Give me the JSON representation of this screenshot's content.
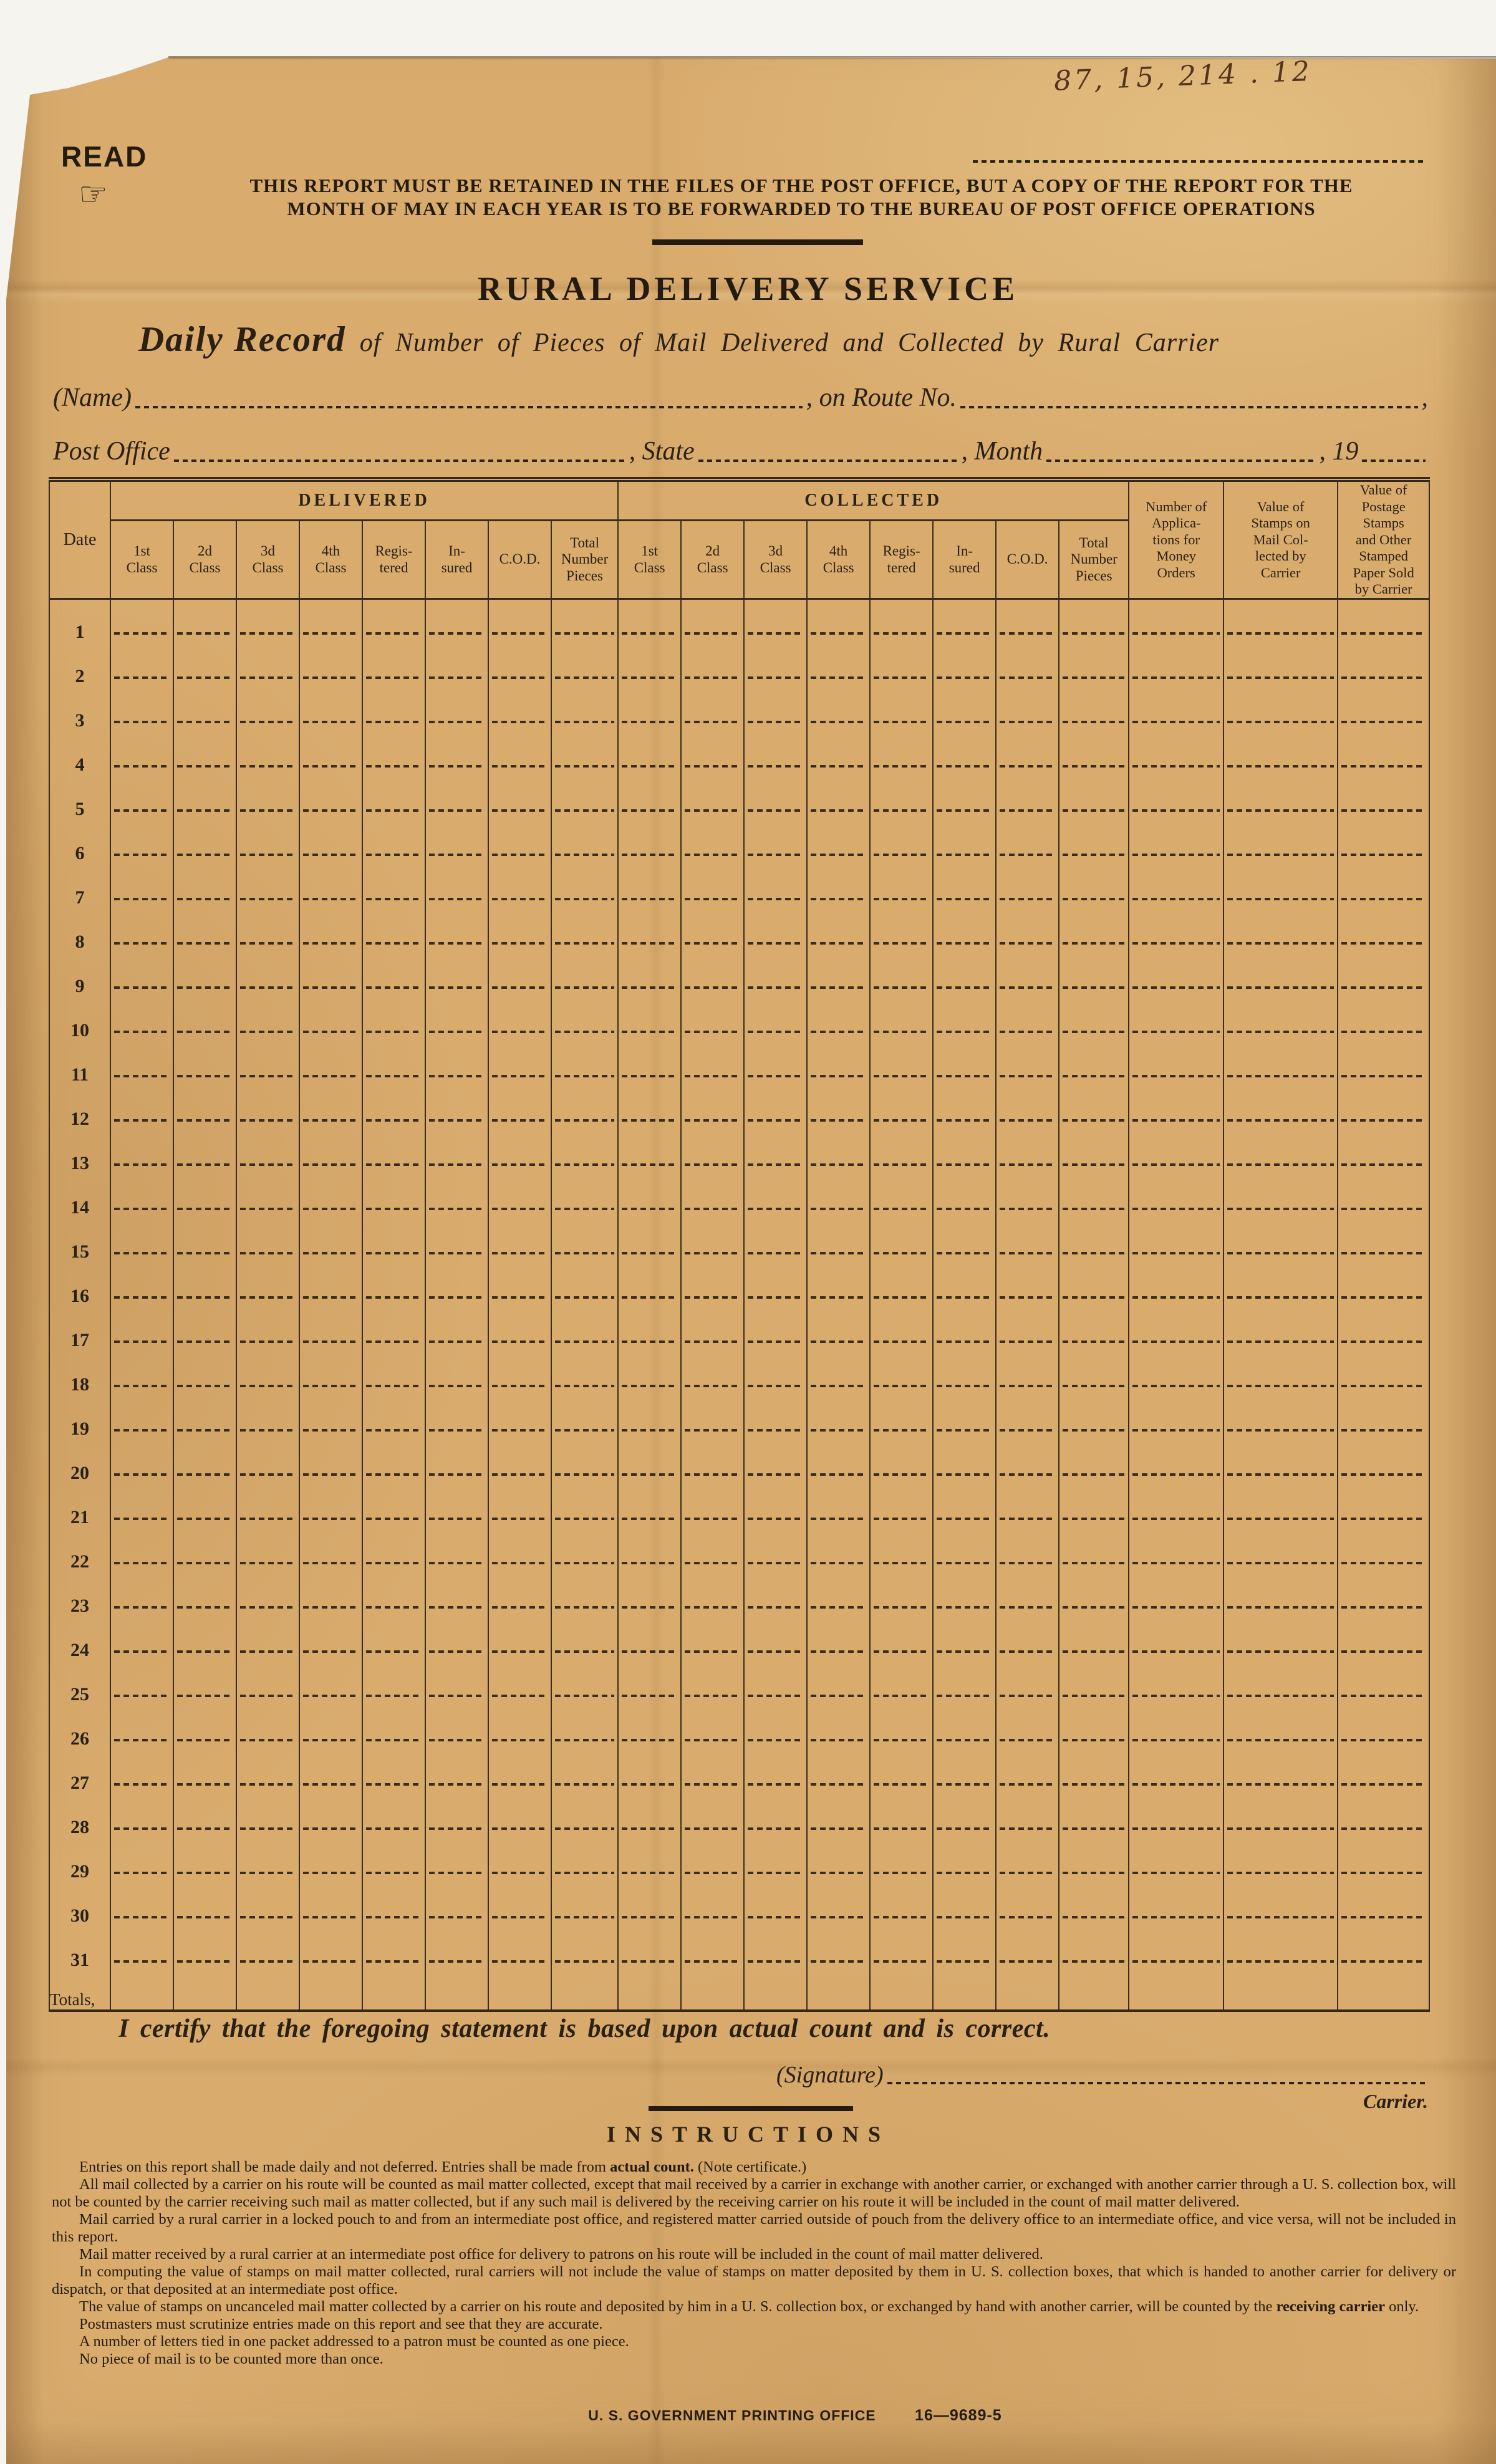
{
  "annotation": {
    "accession_number": "87, 15, 214 . 12"
  },
  "header": {
    "read_label": "READ",
    "manicule_icon": "☞",
    "retention_notice_line1": "THIS REPORT MUST BE RETAINED IN THE FILES OF THE POST OFFICE, BUT A COPY OF THE REPORT FOR THE",
    "retention_notice_line2": "MONTH OF MAY IN EACH YEAR IS TO BE FORWARDED TO THE BUREAU OF POST OFFICE OPERATIONS",
    "title": "RURAL DELIVERY SERVICE",
    "subtitle_lead": "Daily Record",
    "subtitle_rest": "of Number of Pieces of Mail Delivered and Collected by Rural Carrier"
  },
  "fields": {
    "name_label": "(Name)",
    "route_label": ", on Route No.",
    "trailing_comma": ",",
    "post_office_label": "Post Office",
    "state_label": ", State",
    "month_label": ", Month",
    "year_label": ", 19"
  },
  "table": {
    "date_header": "Date",
    "delivered_header": "DELIVERED",
    "collected_header": "COLLECTED",
    "class_columns": [
      "1st\nClass",
      "2d\nClass",
      "3d\nClass",
      "4th\nClass",
      "Regis-\ntered",
      "In-\nsured",
      "C.O.D.",
      "Total\nNumber\nPieces"
    ],
    "right_columns": [
      "Number of\nApplica-\ntions for\nMoney\nOrders",
      "Value of\nStamps on\nMail Col-\nlected by\nCarrier",
      "Value of\nPostage\nStamps\nand Other\nStamped\nPaper Sold\nby Carrier"
    ],
    "dates": [
      "1",
      "2",
      "3",
      "4",
      "5",
      "6",
      "7",
      "8",
      "9",
      "10",
      "11",
      "12",
      "13",
      "14",
      "15",
      "16",
      "17",
      "18",
      "19",
      "20",
      "21",
      "22",
      "23",
      "24",
      "25",
      "26",
      "27",
      "28",
      "29",
      "30",
      "31"
    ],
    "totals_label": "Totals,"
  },
  "certification": {
    "statement": "I certify that the foregoing statement is based upon actual count and is correct.",
    "signature_label": "(Signature)",
    "carrier_label": "Carrier."
  },
  "instructions": {
    "heading": "INSTRUCTIONS",
    "paragraphs": [
      [
        {
          "t": "Entries on this report shall be made daily and not deferred.  Entries shall be made from ",
          "b": false
        },
        {
          "t": "actual count.",
          "b": true
        },
        {
          "t": "  (Note certificate.)",
          "b": false
        }
      ],
      [
        {
          "t": "All mail collected by a carrier on his route will be counted as mail matter collected, except that mail received by a carrier in exchange with another carrier, or exchanged with another carrier through a U. S. collection box, will not be counted by the carrier receiving such mail as matter collected, but if any such mail is delivered by the receiving carrier on his route it will be included in the count of mail matter delivered.",
          "b": false
        }
      ],
      [
        {
          "t": "Mail carried by a rural carrier in a locked pouch to and from an intermediate post office, and registered matter carried outside of pouch from the delivery office to an intermediate office, and vice versa, will not be included in this report.",
          "b": false
        }
      ],
      [
        {
          "t": "Mail matter received by a rural carrier at an intermediate post office for delivery to patrons on his route will be included in the count of mail matter delivered.",
          "b": false
        }
      ],
      [
        {
          "t": "In computing the value of stamps on mail matter collected, rural carriers will not include the value of stamps on matter deposited by them in U. S. collection boxes, that which is handed to another carrier for delivery or dispatch, or that deposited at an intermediate post office.",
          "b": false
        }
      ],
      [
        {
          "t": "The value of stamps on uncanceled mail matter collected by a carrier on his route and deposited by him in a U. S. collection box, or exchanged by hand with another carrier, will be counted by the ",
          "b": false
        },
        {
          "t": "receiving carrier",
          "b": true
        },
        {
          "t": " only.",
          "b": false
        }
      ],
      [
        {
          "t": "Postmasters must scrutinize entries made on this report and see that they are accurate.",
          "b": false
        }
      ],
      [
        {
          "t": "A number of letters tied in one packet addressed to a patron must be counted as one piece.",
          "b": false
        }
      ],
      [
        {
          "t": "No piece of mail is to be counted more than once.",
          "b": false
        }
      ]
    ]
  },
  "footer": {
    "printer": "U. S. GOVERNMENT PRINTING OFFICE",
    "form_number": "16—9689-5"
  },
  "colors": {
    "paper": "#d9ac6e",
    "ink": "#2a2013",
    "line_ink": "#3a2c1c",
    "handwriting": "#53341d",
    "background": "#f6f4ee"
  }
}
